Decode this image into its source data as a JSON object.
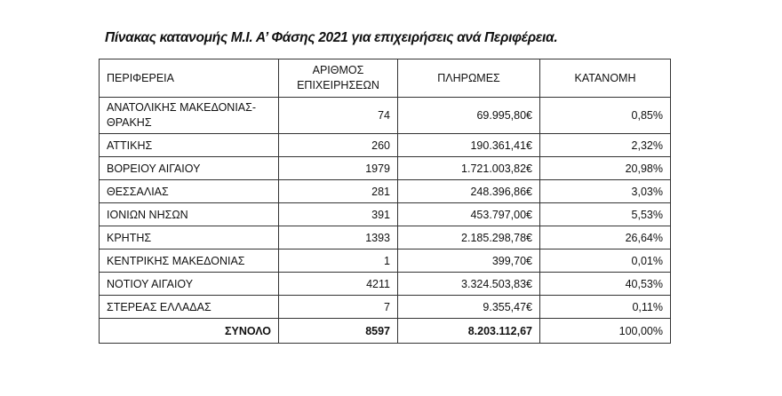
{
  "title": "Πίνακας κατανομής Μ.Ι. Α’ Φάσης 2021  για επιχειρήσεις ανά Περιφέρεια.",
  "headers": {
    "region": "ΠΕΡΙΦΕΡΕΙΑ",
    "count_line1": "ΑΡΙΘΜΟΣ",
    "count_line2": "ΕΠΙΧΕΙΡΗΣΕΩΝ",
    "payments": "ΠΛΗΡΩΜΕΣ",
    "share": "ΚΑΤΑΝΟΜΗ"
  },
  "rows": [
    {
      "region": "ΑΝΑΤΟΛΙΚΗΣ ΜΑΚΕΔΟΝΙΑΣ-ΘΡΑΚΗΣ",
      "count": "74",
      "payments": "69.995,80€",
      "share": "0,85%"
    },
    {
      "region": "ΑΤΤΙΚΗΣ",
      "count": "260",
      "payments": "190.361,41€",
      "share": "2,32%"
    },
    {
      "region": "ΒΟΡΕΙΟΥ ΑΙΓΑΙΟΥ",
      "count": "1979",
      "payments": "1.721.003,82€",
      "share": "20,98%"
    },
    {
      "region": "ΘΕΣΣΑΛΙΑΣ",
      "count": "281",
      "payments": "248.396,86€",
      "share": "3,03%"
    },
    {
      "region": "ΙΟΝΙΩΝ ΝΗΣΩΝ",
      "count": "391",
      "payments": "453.797,00€",
      "share": "5,53%"
    },
    {
      "region": "ΚΡΗΤΗΣ",
      "count": "1393",
      "payments": "2.185.298,78€",
      "share": "26,64%"
    },
    {
      "region": "ΚΕΝΤΡΙΚΗΣ ΜΑΚΕΔΟΝΙΑΣ",
      "count": "1",
      "payments": "399,70€",
      "share": "0,01%"
    },
    {
      "region": "ΝΟΤΙΟΥ ΑΙΓΑΙΟΥ",
      "count": "4211",
      "payments": "3.324.503,83€",
      "share": "40,53%"
    },
    {
      "region": "ΣΤΕΡΕΑΣ ΕΛΛΑΔΑΣ",
      "count": "7",
      "payments": "9.355,47€",
      "share": "0,11%"
    }
  ],
  "total": {
    "label": "ΣΥΝΟΛΟ",
    "count": "8597",
    "payments": "8.203.112,67",
    "share": "100,00%"
  }
}
